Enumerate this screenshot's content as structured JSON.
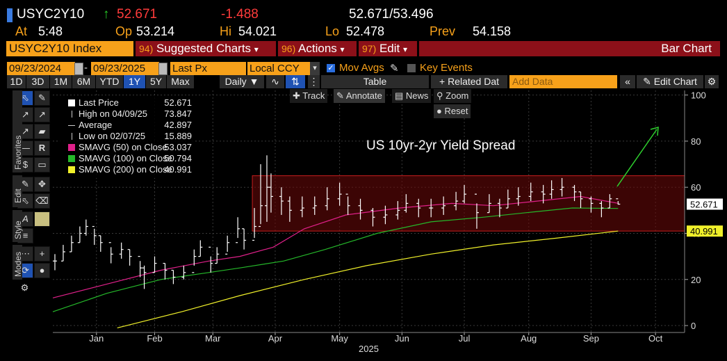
{
  "header": {
    "ticker": "USYC2Y10",
    "arrow": "↑",
    "last": "52.671",
    "change": "-1.488",
    "bid_ask": "52.671/53.496",
    "at_label": "At",
    "at_value": "5:48",
    "op_label": "Op",
    "op_value": "53.214",
    "hi_label": "Hi",
    "hi_value": "54.021",
    "lo_label": "Lo",
    "lo_value": "52.478",
    "prev_label": "Prev",
    "prev_value": "54.158"
  },
  "menu": {
    "security": "USYC2Y10 Index",
    "suggested_num": "94)",
    "suggested": "Suggested Charts",
    "actions_num": "96)",
    "actions": "Actions",
    "edit_num": "97)",
    "edit": "Edit",
    "chart_type": "Bar Chart"
  },
  "controls": {
    "start_date": "09/23/2024",
    "end_date": "09/23/2025",
    "field": "Last Px",
    "currency": "Local CCY",
    "mov_avgs": "Mov Avgs",
    "key_events": "Key Events"
  },
  "periods": [
    "1D",
    "3D",
    "1M",
    "6M",
    "YTD",
    "1Y",
    "5Y",
    "Max"
  ],
  "selected_period": "1Y",
  "toolbar2": {
    "frequency": "Daily",
    "table": "Table",
    "related": "+ Related Dat",
    "add_data_placeholder": "Add Data",
    "edit_chart": "Edit Chart"
  },
  "chart_tools": {
    "track": "Track",
    "annotate": "Annotate",
    "news": "News",
    "zoom": "Zoom",
    "reset": "Reset"
  },
  "side_tabs": {
    "favorites": "Favorites",
    "edit": "Edit",
    "style": "Style",
    "modes": "Modes"
  },
  "legend": [
    {
      "label": "Last Price",
      "value": "52.671",
      "color": "#ffffff",
      "kind": "swatch"
    },
    {
      "label": "High on 04/09/25",
      "value": "73.847",
      "color": "#cccccc",
      "kind": "tick"
    },
    {
      "label": "Average",
      "value": "42.897",
      "color": "#cccccc",
      "kind": "dash"
    },
    {
      "label": "Low on 02/07/25",
      "value": "15.889",
      "color": "#cccccc",
      "kind": "tick"
    },
    {
      "label": "SMAVG (50)  on Close",
      "value": "53.037",
      "color": "#e0208a",
      "kind": "swatch"
    },
    {
      "label": "SMAVG (100)  on Close",
      "value": "50.794",
      "color": "#25b82a",
      "kind": "swatch"
    },
    {
      "label": "SMAVG (200)  on Close",
      "value": "40.991",
      "color": "#f0f02a",
      "kind": "swatch"
    }
  ],
  "chart_data": {
    "type": "bar",
    "title": "US 10yr-2yr Yield Spread",
    "xlabel": "2025",
    "ylabel": "",
    "ylim": [
      -3,
      102
    ],
    "yticks": [
      0,
      20,
      40,
      60,
      80,
      100
    ],
    "xticks": [
      {
        "label": "Jan",
        "date": "2025-01-15"
      },
      {
        "label": "Feb",
        "date": "2025-02-12"
      },
      {
        "label": "Mar",
        "date": "2025-03-12"
      },
      {
        "label": "Apr",
        "date": "2025-04-11"
      },
      {
        "label": "May",
        "date": "2025-05-12"
      },
      {
        "label": "Jun",
        "date": "2025-06-11"
      },
      {
        "label": "Jul",
        "date": "2025-07-11"
      },
      {
        "label": "Aug",
        "date": "2025-08-11"
      },
      {
        "label": "Sep",
        "date": "2025-09-10"
      },
      {
        "label": "Oct",
        "date": "2025-10-11"
      }
    ],
    "x_start": "2024-12-25",
    "x_end": "2025-10-25",
    "range_band": {
      "from": 41,
      "to": 65,
      "start": "2025-03-31"
    },
    "price_labels": [
      {
        "text": "52.671",
        "value": 52.671,
        "color": "#ffffff",
        "text_color": "#000000"
      },
      {
        "text": "40.991",
        "value": 40.991,
        "color": "#f0f02a",
        "text_color": "#000000"
      }
    ],
    "grid": true,
    "series": [
      {
        "name": "Last Price",
        "color": "#ffffff",
        "kind": "ohlc",
        "x": [
          "2024-12-26",
          "2024-12-30",
          "2025-01-03",
          "2025-01-07",
          "2025-01-10",
          "2025-01-14",
          "2025-01-17",
          "2025-01-22",
          "2025-01-27",
          "2025-01-31",
          "2025-02-05",
          "2025-02-07",
          "2025-02-12",
          "2025-02-17",
          "2025-02-21",
          "2025-02-26",
          "2025-03-03",
          "2025-03-06",
          "2025-03-11",
          "2025-03-14",
          "2025-03-19",
          "2025-03-24",
          "2025-03-27",
          "2025-04-01",
          "2025-04-04",
          "2025-04-07",
          "2025-04-09",
          "2025-04-14",
          "2025-04-18",
          "2025-04-24",
          "2025-04-30",
          "2025-05-06",
          "2025-05-12",
          "2025-05-16",
          "2025-05-22",
          "2025-05-28",
          "2025-06-03",
          "2025-06-09",
          "2025-06-13",
          "2025-06-19",
          "2025-06-25",
          "2025-07-01",
          "2025-07-07",
          "2025-07-11",
          "2025-07-17",
          "2025-07-23",
          "2025-07-28",
          "2025-08-01",
          "2025-08-06",
          "2025-08-12",
          "2025-08-18",
          "2025-08-22",
          "2025-08-27",
          "2025-09-02",
          "2025-09-05",
          "2025-09-10",
          "2025-09-15",
          "2025-09-19",
          "2025-09-23"
        ],
        "close": [
          28,
          32,
          36,
          40,
          43,
          39,
          36,
          31,
          33,
          30,
          25,
          23,
          27,
          24,
          21,
          23,
          30,
          34,
          27,
          31,
          36,
          42,
          37,
          43,
          52,
          60,
          56,
          54,
          50,
          51,
          52,
          55,
          57,
          52,
          50,
          47,
          48,
          50,
          53,
          51,
          51,
          52,
          54,
          57,
          49,
          53,
          51,
          55,
          56,
          58,
          57,
          59,
          60,
          58,
          55,
          53,
          51,
          55,
          52.671
        ],
        "high": [
          31,
          35,
          39,
          43,
          46,
          42,
          39,
          34,
          36,
          33,
          28,
          26,
          30,
          27,
          24,
          26,
          33,
          37,
          30,
          34,
          39,
          47,
          42,
          51,
          70,
          73.847,
          66,
          60,
          56,
          56,
          56,
          60,
          62,
          56,
          55,
          51,
          52,
          54,
          57,
          55,
          55,
          56,
          58,
          61,
          53,
          57,
          55,
          59,
          60,
          62,
          61,
          63,
          64,
          61,
          58,
          56,
          54,
          57,
          54.021
        ],
        "low": [
          24,
          28,
          32,
          36,
          39,
          35,
          32,
          27,
          29,
          26,
          21,
          15.889,
          23,
          20,
          18,
          20,
          26,
          30,
          23,
          27,
          32,
          38,
          33,
          38,
          44,
          45,
          49,
          48,
          45,
          47,
          48,
          50,
          52,
          48,
          46,
          43,
          44,
          46,
          49,
          47,
          47,
          48,
          50,
          53,
          42,
          49,
          47,
          51,
          52,
          54,
          53,
          55,
          56,
          54,
          51,
          49,
          47,
          51,
          52.478
        ]
      },
      {
        "name": "SMAVG (50)  on Close",
        "color": "#e0208a",
        "kind": "line",
        "x": [
          "2024-12-25",
          "2025-01-20",
          "2025-02-15",
          "2025-03-10",
          "2025-03-25",
          "2025-04-10",
          "2025-04-25",
          "2025-05-15",
          "2025-06-10",
          "2025-07-05",
          "2025-07-25",
          "2025-08-15",
          "2025-09-05",
          "2025-09-23"
        ],
        "values": [
          12,
          18,
          24,
          28,
          30,
          34,
          42,
          48,
          51,
          53,
          52,
          54,
          56,
          53.037
        ]
      },
      {
        "name": "SMAVG (100)  on Close",
        "color": "#25b82a",
        "kind": "line",
        "x": [
          "2024-12-25",
          "2025-01-20",
          "2025-02-15",
          "2025-03-10",
          "2025-03-25",
          "2025-04-15",
          "2025-05-05",
          "2025-05-30",
          "2025-06-25",
          "2025-07-20",
          "2025-08-10",
          "2025-09-01",
          "2025-09-23"
        ],
        "values": [
          6,
          14,
          20,
          23,
          25,
          28,
          33,
          40,
          45,
          47,
          49,
          51,
          50.794
        ]
      },
      {
        "name": "SMAVG (200)  on Close",
        "color": "#f0f02a",
        "kind": "line",
        "x": [
          "2025-01-25",
          "2025-02-25",
          "2025-03-25",
          "2025-04-25",
          "2025-05-25",
          "2025-06-25",
          "2025-07-25",
          "2025-08-25",
          "2025-09-23"
        ],
        "values": [
          -1,
          6,
          13,
          20,
          26,
          31,
          35,
          38,
          40.991
        ]
      }
    ]
  }
}
